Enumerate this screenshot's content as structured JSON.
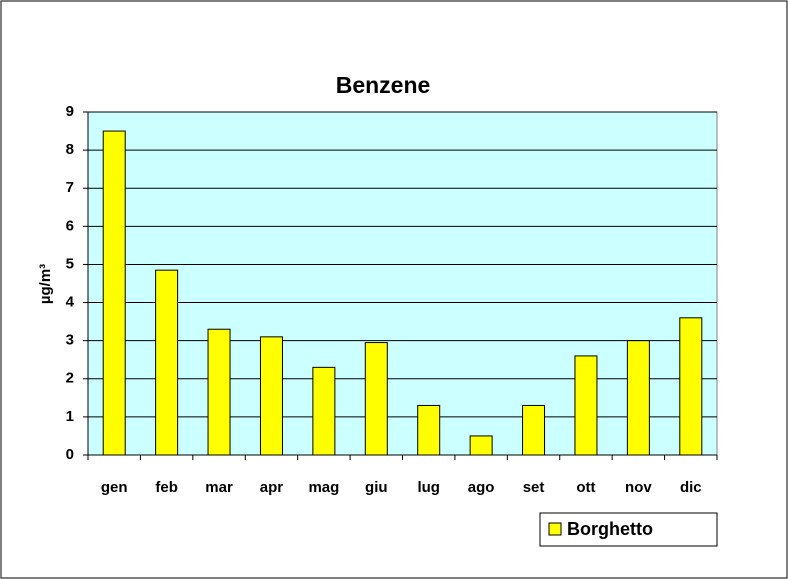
{
  "chart_data": {
    "type": "bar",
    "title": "Benzene",
    "y_label": "µg/m³",
    "categories": [
      "gen",
      "feb",
      "mar",
      "apr",
      "mag",
      "giu",
      "lug",
      "ago",
      "set",
      "ott",
      "nov",
      "dic"
    ],
    "series": [
      {
        "name": "Borghetto",
        "color": "#ffff00",
        "values": [
          8.5,
          4.85,
          3.3,
          3.1,
          2.3,
          2.95,
          1.3,
          0.5,
          1.3,
          2.6,
          3.0,
          3.6
        ]
      }
    ],
    "ylim": [
      0,
      9
    ],
    "yticks": [
      0,
      1,
      2,
      3,
      4,
      5,
      6,
      7,
      8,
      9
    ],
    "grid": true,
    "plot_background": "#ccffff",
    "legend": "bottom-right"
  }
}
